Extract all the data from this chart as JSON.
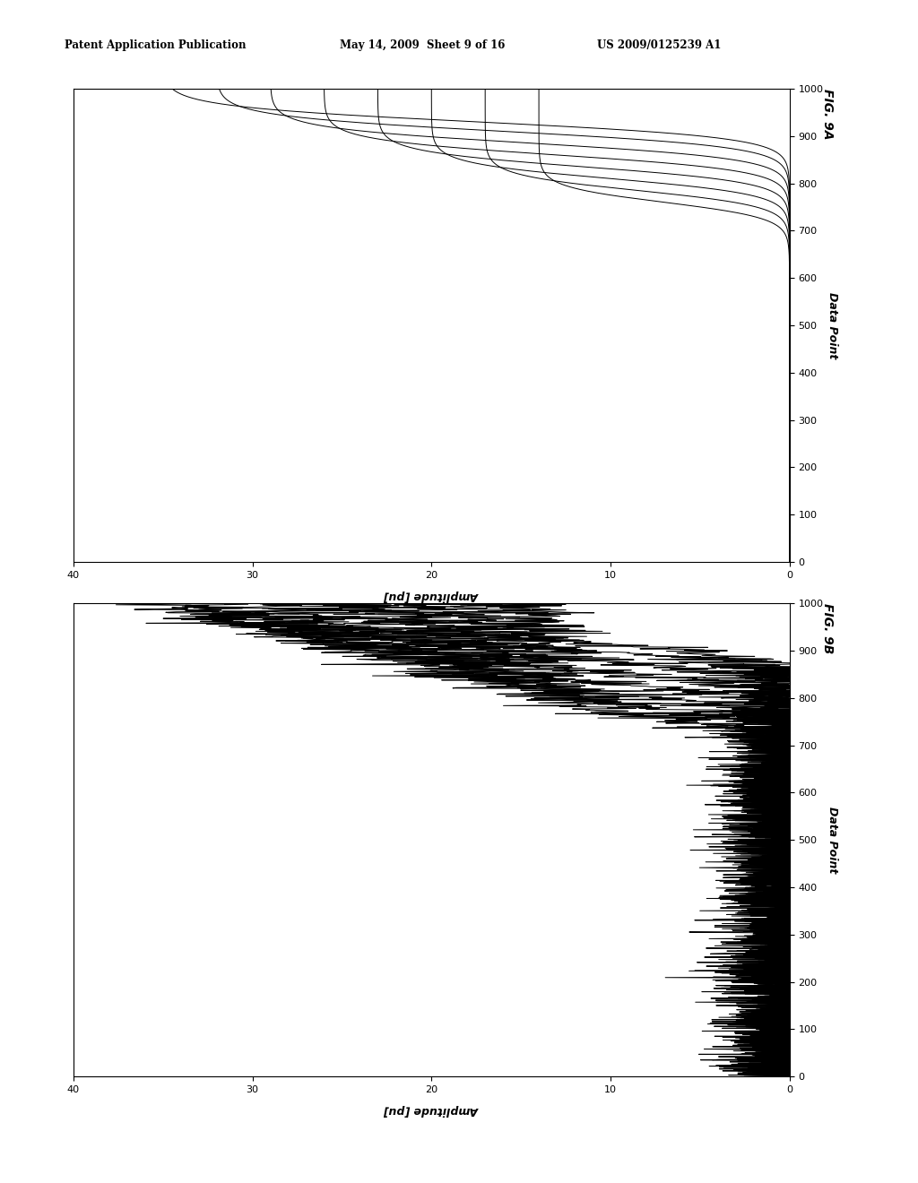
{
  "header_left": "Patent Application Publication",
  "header_mid": "May 14, 2009  Sheet 9 of 16",
  "header_right": "US 2009/0125239 A1",
  "fig_a_label": "FIG. 9A",
  "fig_b_label": "FIG. 9B",
  "x_label": "Data Point",
  "y_label": "Amplitude [pu]",
  "x_min": 0,
  "x_max": 1000,
  "y_min": 0,
  "y_max": 40,
  "n_points": 1000,
  "n_curves": 8,
  "sigmoid_centers": [
    930,
    910,
    885,
    860,
    835,
    810,
    785,
    760
  ],
  "sigmoid_steepness": [
    0.06,
    0.06,
    0.06,
    0.06,
    0.06,
    0.06,
    0.06,
    0.06
  ],
  "sigmoid_amplitudes": [
    35,
    32,
    29,
    26,
    23,
    20,
    17,
    14
  ],
  "noise_scale": 1.8,
  "line_color": "#000000",
  "line_width": 0.7,
  "background_color": "#ffffff"
}
